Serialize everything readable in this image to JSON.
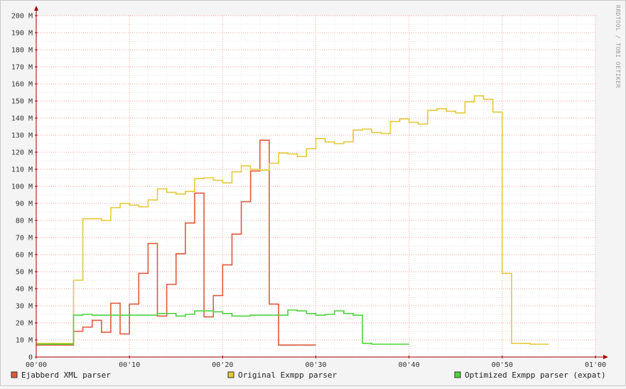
{
  "watermark": "RRDTOOL / TOBI OETIKER",
  "chart_data": {
    "type": "line",
    "step": true,
    "grid": true,
    "y_unit": "M",
    "ylim": [
      0,
      200
    ],
    "y_ticks": [
      0,
      10,
      20,
      30,
      40,
      50,
      60,
      70,
      80,
      90,
      100,
      110,
      120,
      130,
      140,
      150,
      160,
      170,
      180,
      190,
      200
    ],
    "y_tick_labels": [
      "0",
      "10 M",
      "20 M",
      "30 M",
      "40 M",
      "50 M",
      "60 M",
      "70 M",
      "80 M",
      "90 M",
      "100 M",
      "110 M",
      "120 M",
      "130 M",
      "140 M",
      "150 M",
      "160 M",
      "170 M",
      "180 M",
      "190 M",
      "200 M"
    ],
    "xlim": [
      0,
      60
    ],
    "x_ticks": [
      0,
      10,
      20,
      30,
      40,
      50,
      60
    ],
    "x_tick_labels": [
      "00'00",
      "00'10",
      "00'20",
      "00'30",
      "00'40",
      "00'50",
      "01'00"
    ],
    "legend_position": "bottom",
    "series": [
      {
        "name": "Ejabberd XML parser",
        "color": "#e05a3c",
        "x_end": 30,
        "values": [
          7,
          7,
          7,
          7,
          15,
          17.5,
          21.5,
          14.5,
          31.5,
          13.5,
          31,
          49,
          66.5,
          24,
          42.5,
          60.5,
          78.5,
          96,
          23.5,
          36,
          54,
          72,
          91,
          109,
          127,
          31,
          7,
          7,
          7,
          7
        ]
      },
      {
        "name": "Original Exmpp parser",
        "color": "#e5c93a",
        "x_end": 55,
        "values": [
          8,
          8,
          8,
          8,
          45,
          81,
          81,
          80,
          87.5,
          90,
          89,
          88,
          92,
          98.5,
          96.5,
          95.5,
          97,
          104.5,
          105,
          103.5,
          102,
          108.5,
          112,
          110,
          109.5,
          113.5,
          119.5,
          119,
          117.5,
          122,
          128,
          126,
          125,
          126,
          133,
          133.5,
          131.5,
          131,
          138,
          139.5,
          137.5,
          136.5,
          144.5,
          145.5,
          144,
          143,
          149.5,
          153,
          151,
          143.5,
          49,
          8,
          8,
          7.5,
          7.5
        ]
      },
      {
        "name": "Optimized Exmpp parser (expat)",
        "color": "#4fd43f",
        "x_end": 40,
        "values": [
          7.5,
          7.5,
          7.5,
          7.5,
          24.5,
          25,
          24.5,
          24.5,
          24.5,
          24.5,
          24.5,
          24.5,
          24.5,
          25.5,
          25.5,
          24,
          25,
          27,
          27,
          26.5,
          25.5,
          24,
          24,
          24.5,
          24.5,
          24.5,
          24.5,
          27.5,
          27,
          25.5,
          24.5,
          25,
          27,
          25.5,
          24.5,
          8,
          7.5,
          7.5,
          7.5,
          7.5
        ]
      }
    ]
  }
}
